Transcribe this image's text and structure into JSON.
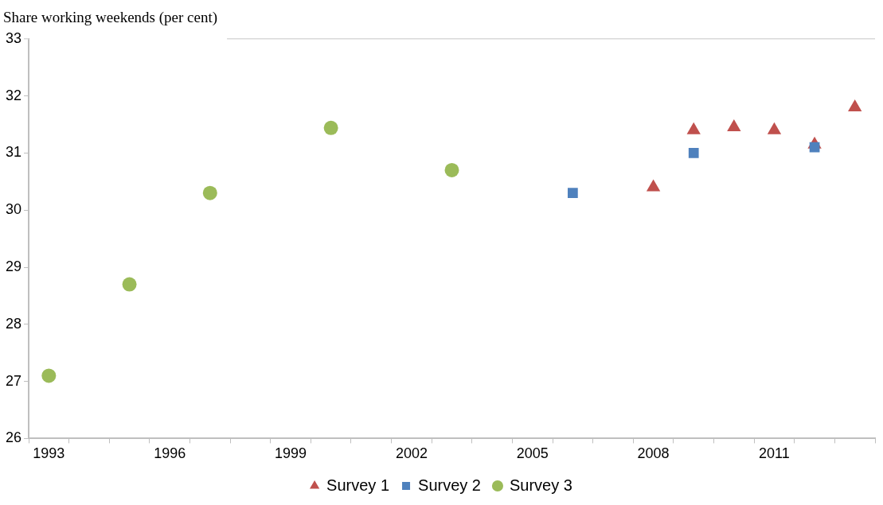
{
  "chart_data": {
    "type": "scatter",
    "title": "Share working weekends (per cent)",
    "series": [
      {
        "name": "Survey 1",
        "color": "#c0504d",
        "marker": "triangle",
        "x": [
          2008,
          2009,
          2010,
          2011,
          2012,
          2013
        ],
        "values": [
          30.4,
          31.4,
          31.45,
          31.4,
          31.15,
          31.8
        ]
      },
      {
        "name": "Survey 2",
        "color": "#4f81bd",
        "marker": "square",
        "x": [
          2006,
          2009,
          2012
        ],
        "values": [
          30.3,
          31.0,
          31.1
        ]
      },
      {
        "name": "Survey 3",
        "color": "#9bbb59",
        "marker": "circle",
        "x": [
          1993,
          1995,
          1997,
          2000,
          2003
        ],
        "values": [
          27.1,
          28.7,
          30.3,
          31.44,
          30.7
        ]
      }
    ],
    "xlim": [
      1992.5,
      2013.5
    ],
    "xticks": [
      {
        "value": 1992.5,
        "label": null
      },
      1993,
      {
        "value": 1993.5,
        "label": null
      },
      {
        "value": 1994.5,
        "label": null
      },
      {
        "value": 1995.5,
        "label": null
      },
      1996,
      {
        "value": 1996.5,
        "label": null
      },
      {
        "value": 1997.5,
        "label": null
      },
      {
        "value": 1998.5,
        "label": null
      },
      1999,
      {
        "value": 1999.5,
        "label": null
      },
      {
        "value": 2000.5,
        "label": null
      },
      {
        "value": 2001.5,
        "label": null
      },
      2002,
      {
        "value": 2002.5,
        "label": null
      },
      {
        "value": 2003.5,
        "label": null
      },
      {
        "value": 2004.5,
        "label": null
      },
      2005,
      {
        "value": 2005.5,
        "label": null
      },
      {
        "value": 2006.5,
        "label": null
      },
      {
        "value": 2007.5,
        "label": null
      },
      2008,
      {
        "value": 2008.5,
        "label": null
      },
      {
        "value": 2009.5,
        "label": null
      },
      {
        "value": 2010.5,
        "label": null
      },
      2011,
      {
        "value": 2011.5,
        "label": null
      },
      {
        "value": 2012.5,
        "label": null
      },
      {
        "value": 2013.5,
        "label": null
      }
    ],
    "ylim": [
      26,
      33
    ],
    "yticks": [
      26,
      27,
      28,
      29,
      30,
      31,
      32,
      33
    ],
    "grid": false,
    "legend": "bottom"
  }
}
